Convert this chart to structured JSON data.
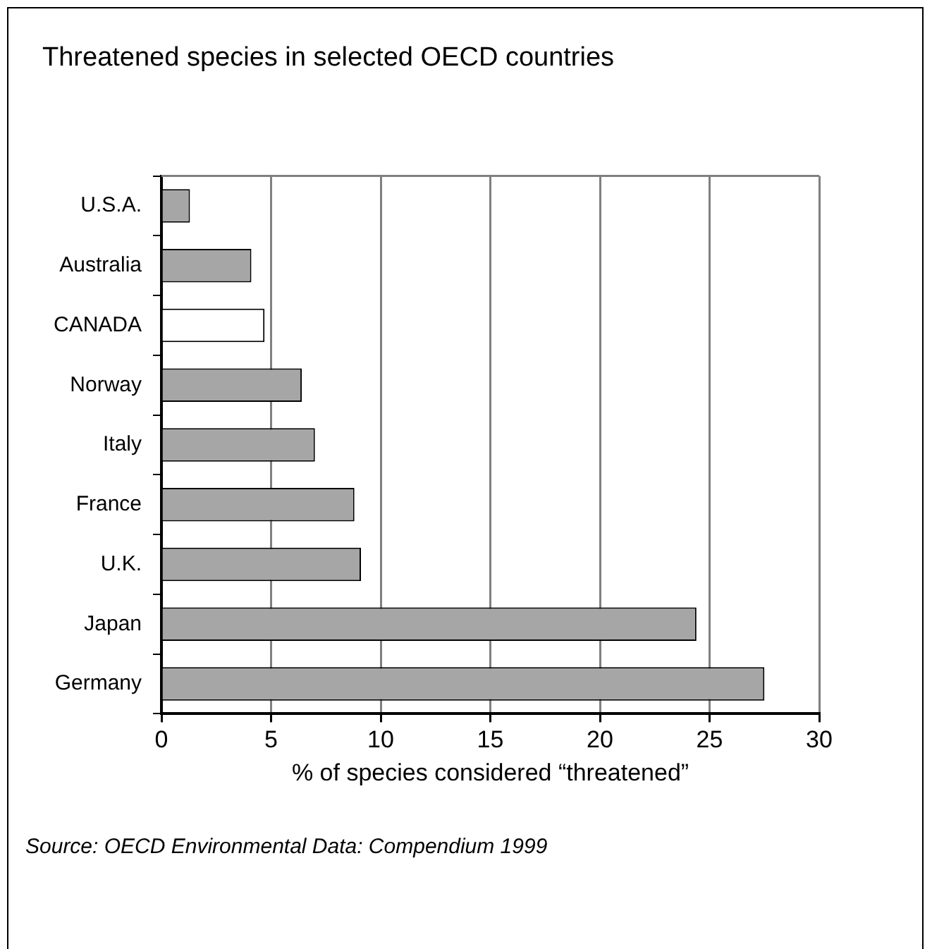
{
  "chart_data": {
    "type": "bar",
    "orientation": "horizontal",
    "title": "Threatened species in selected OECD countries",
    "xlabel": "% of species considered “threatened”",
    "categories": [
      "U.S.A.",
      "Australia",
      "CANADA",
      "Norway",
      "Italy",
      "France",
      "U.K.",
      "Japan",
      "Germany"
    ],
    "values": [
      1.3,
      4.1,
      4.7,
      6.4,
      7.0,
      8.8,
      9.1,
      24.4,
      27.5
    ],
    "colors": [
      "#a6a6a6",
      "#a6a6a6",
      "#ffffff",
      "#a6a6a6",
      "#a6a6a6",
      "#a6a6a6",
      "#a6a6a6",
      "#a6a6a6",
      "#a6a6a6"
    ],
    "xlim": [
      0,
      30
    ],
    "xticks": [
      0,
      5,
      10,
      15,
      20,
      25,
      30
    ],
    "grid": "x",
    "legend": false,
    "annotations": [
      "Source: OECD Environmental Data: Compendium 1999"
    ]
  }
}
